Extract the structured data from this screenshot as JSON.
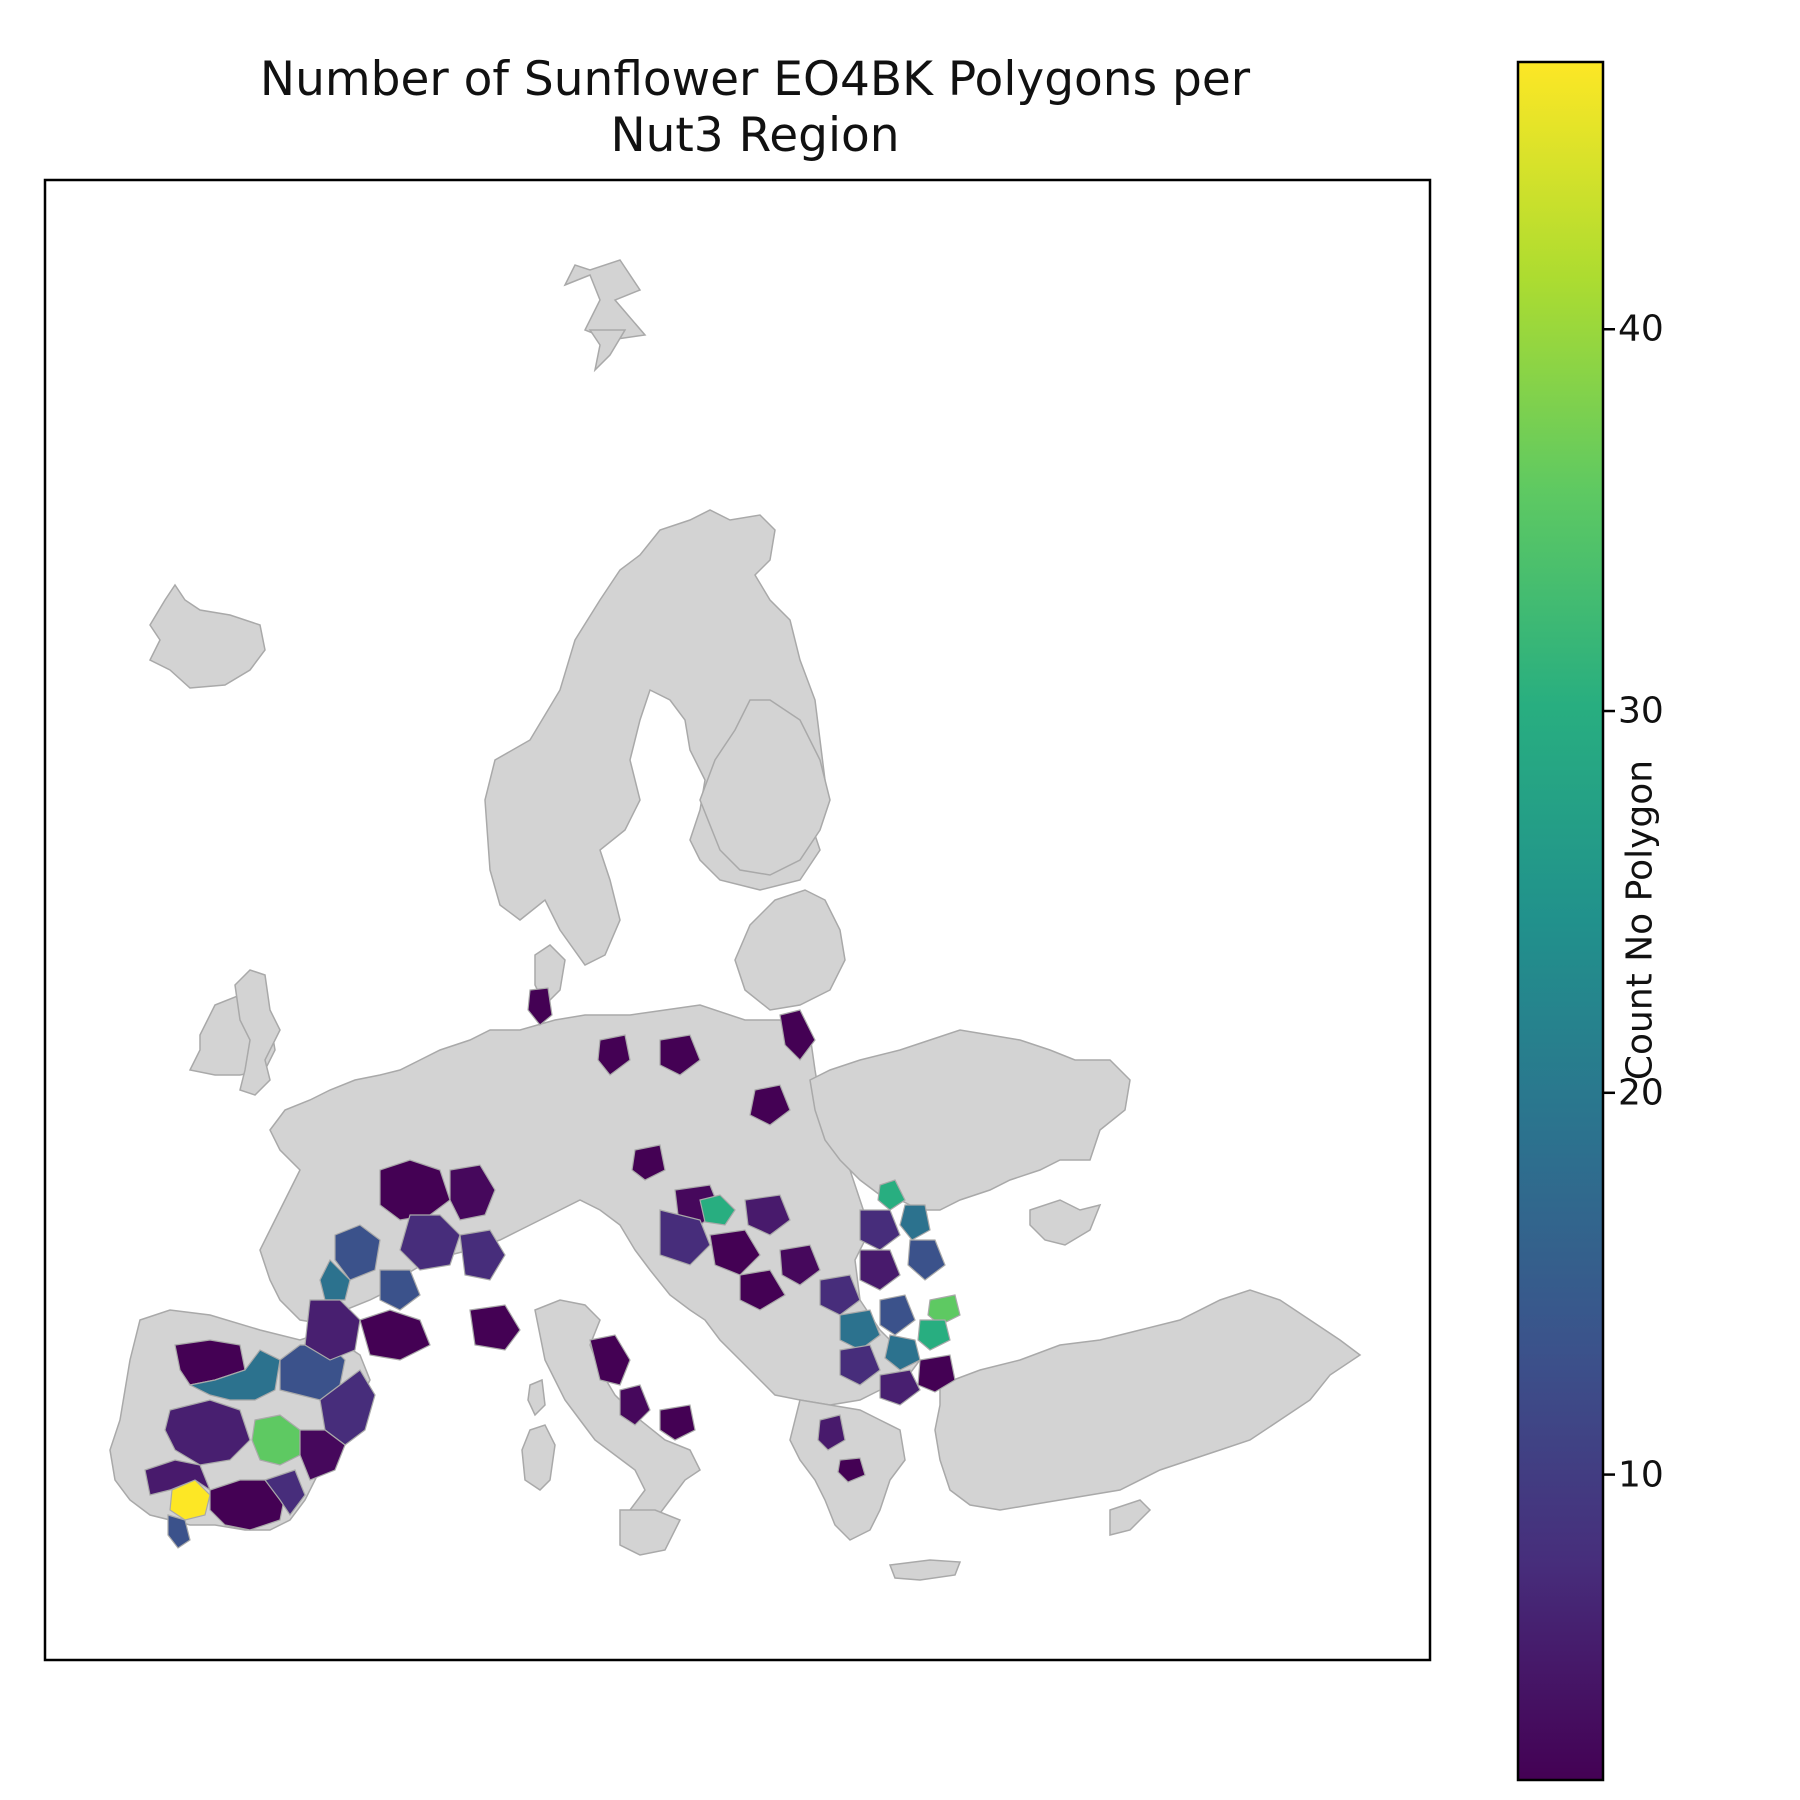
{
  "title": {
    "line1": "Number of Sunflower EO4BK Polygons per",
    "line2": "Nut3 Region"
  },
  "colorbar": {
    "label": "Count No Polygon",
    "min": 2,
    "max": 47,
    "ticks": [
      "10",
      "20",
      "30",
      "40"
    ],
    "colormap": "viridis"
  },
  "colors": {
    "no_data_fill": "#d3d3d3",
    "region_edge": "#a9a9a9",
    "frame": "#000000"
  },
  "chart_data": {
    "type": "choropleth",
    "value_name": "Count No Polygon",
    "no_data_regions": "light grey",
    "highlight_regions": [
      {
        "area": "southern Spain (Andalusia, west)",
        "value": 47
      },
      {
        "area": "southern Spain (near Huelva)",
        "value": 17
      },
      {
        "area": "central Spain",
        "value": 20
      },
      {
        "area": "south-central Spain",
        "value": 36
      },
      {
        "area": "western France",
        "value": 18
      },
      {
        "area": "Hungary (north)",
        "value": 30
      },
      {
        "area": "Romania (north-east)",
        "value": 28
      },
      {
        "area": "Romania (east)",
        "value": 18
      },
      {
        "area": "Bulgaria / Romania (south-east)",
        "value": 36
      },
      {
        "area": "Bulgaria",
        "value": 24
      },
      {
        "area": "Hungary / Slovakia / Poland / Czechia",
        "value": 3
      },
      {
        "area": "Italy (central)",
        "value": 3
      },
      {
        "area": "Greece (north)",
        "value": 4
      }
    ]
  }
}
